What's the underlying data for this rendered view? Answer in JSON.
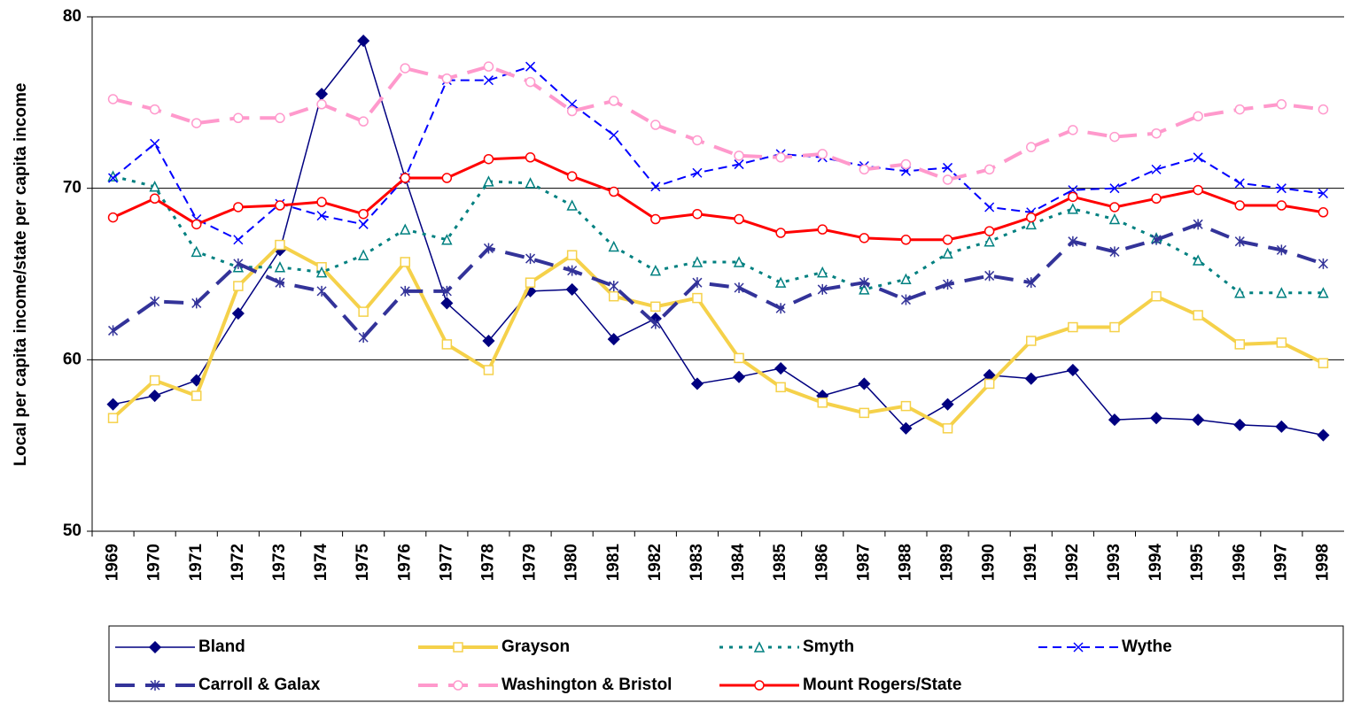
{
  "chart_data": {
    "type": "line",
    "y_label": "Local per capita income/state per capita income",
    "categories": [
      "1969",
      "1970",
      "1971",
      "1972",
      "1973",
      "1974",
      "1975",
      "1976",
      "1977",
      "1978",
      "1979",
      "1980",
      "1981",
      "1982",
      "1983",
      "1984",
      "1985",
      "1986",
      "1987",
      "1988",
      "1989",
      "1990",
      "1991",
      "1992",
      "1993",
      "1994",
      "1995",
      "1996",
      "1997",
      "1998"
    ],
    "ylim": [
      50,
      80
    ],
    "yticks": [
      50,
      60,
      70,
      80
    ],
    "grid": true,
    "legend": "bottom",
    "series": [
      {
        "name": "Bland",
        "color": "#000080",
        "marker": "diamond",
        "dash": "solid",
        "width": 1.5,
        "values": [
          57.4,
          57.9,
          58.8,
          62.7,
          66.4,
          75.5,
          78.6,
          70.6,
          63.3,
          61.1,
          64.0,
          64.1,
          61.2,
          62.4,
          58.6,
          59.0,
          59.5,
          57.9,
          58.6,
          56.0,
          57.4,
          59.1,
          58.9,
          59.4,
          56.5,
          56.6,
          56.5,
          56.2,
          56.1,
          55.6
        ]
      },
      {
        "name": "Grayson",
        "color": "#f5d14a",
        "marker": "square",
        "dash": "solid",
        "width": 4,
        "values": [
          56.6,
          58.8,
          57.9,
          64.3,
          66.7,
          65.4,
          62.8,
          65.7,
          60.9,
          59.4,
          64.5,
          66.1,
          63.7,
          63.1,
          63.6,
          60.1,
          58.4,
          57.5,
          56.9,
          57.3,
          56.0,
          58.6,
          61.1,
          61.9,
          61.9,
          63.7,
          62.6,
          60.9,
          61.0,
          59.8
        ]
      },
      {
        "name": "Smyth",
        "color": "#008080",
        "marker": "triangle",
        "dash": "dotted",
        "width": 3,
        "values": [
          70.7,
          70.1,
          66.3,
          65.4,
          65.4,
          65.1,
          66.1,
          67.6,
          67.0,
          70.4,
          70.3,
          69.0,
          66.6,
          65.2,
          65.7,
          65.7,
          64.5,
          65.1,
          64.1,
          64.7,
          66.2,
          66.9,
          67.9,
          68.8,
          68.2,
          67.1,
          65.8,
          63.9,
          63.9,
          63.9
        ]
      },
      {
        "name": "Wythe",
        "color": "#0000ff",
        "marker": "x",
        "dash": "dashed",
        "width": 2,
        "values": [
          70.6,
          72.6,
          68.2,
          67.0,
          69.1,
          68.4,
          67.9,
          70.6,
          76.3,
          76.3,
          77.1,
          74.9,
          73.1,
          70.1,
          70.9,
          71.4,
          72.0,
          71.8,
          71.3,
          71.0,
          71.2,
          68.9,
          68.6,
          69.9,
          70.0,
          71.1,
          71.8,
          70.3,
          70.0,
          69.7
        ]
      },
      {
        "name": "Carroll & Galax",
        "color": "#333399",
        "marker": "star",
        "dash": "longdash",
        "width": 4,
        "values": [
          61.7,
          63.4,
          63.3,
          65.6,
          64.5,
          64.0,
          61.3,
          64.0,
          64.0,
          66.5,
          65.9,
          65.2,
          64.3,
          62.1,
          64.5,
          64.2,
          63.0,
          64.1,
          64.5,
          63.5,
          64.4,
          64.9,
          64.5,
          66.9,
          66.3,
          67.0,
          67.9,
          66.9,
          66.4,
          65.6
        ]
      },
      {
        "name": "Washington & Bristol",
        "color": "#ff99cc",
        "marker": "circle",
        "dash": "longdash",
        "width": 4,
        "values": [
          75.2,
          74.6,
          73.8,
          74.1,
          74.1,
          74.9,
          73.9,
          77.0,
          76.4,
          77.1,
          76.2,
          74.5,
          75.1,
          73.7,
          72.8,
          71.9,
          71.8,
          72.0,
          71.1,
          71.4,
          70.5,
          71.1,
          72.4,
          73.4,
          73.0,
          73.2,
          74.2,
          74.6,
          74.9,
          74.6
        ]
      },
      {
        "name": "Mount Rogers/State",
        "color": "#ff0000",
        "marker": "circle",
        "dash": "solid",
        "width": 3,
        "values": [
          68.3,
          69.4,
          67.9,
          68.9,
          69.0,
          69.2,
          68.5,
          70.6,
          70.6,
          71.7,
          71.8,
          70.7,
          69.8,
          68.2,
          68.5,
          68.2,
          67.4,
          67.6,
          67.1,
          67.0,
          67.0,
          67.5,
          68.3,
          69.5,
          68.9,
          69.4,
          69.9,
          69.0,
          69.0,
          68.6
        ]
      }
    ]
  }
}
